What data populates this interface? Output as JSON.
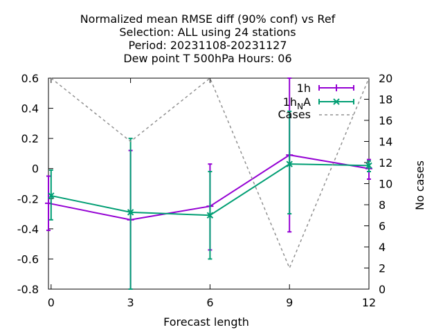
{
  "chart_data": {
    "type": "line",
    "title_lines": [
      "Normalized mean RMSE diff (90% conf) vs Ref",
      "Selection: ALL using    24 stations",
      "Period: 20231108-20231127",
      "Dew point T 500hPa   Hours:  06"
    ],
    "xlabel": "Forecast length",
    "ylabel": "",
    "y2label": "No cases",
    "xlim": [
      -0.1,
      12
    ],
    "ylim": [
      -0.8,
      0.6
    ],
    "y2lim": [
      0,
      20
    ],
    "x_ticks": [
      0,
      3,
      6,
      9,
      12
    ],
    "y_ticks": [
      -0.8,
      -0.6,
      -0.4,
      -0.2,
      0,
      0.2,
      0.4,
      0.6
    ],
    "y_tick_labels": [
      "-0.8",
      "-0.6",
      "-0.4",
      "-0.2",
      "0",
      "0.2",
      "0.4",
      "0.6"
    ],
    "y2_ticks": [
      0,
      2,
      4,
      6,
      8,
      10,
      12,
      14,
      16,
      18,
      20
    ],
    "legend_position": "top-right",
    "series": [
      {
        "name": "1h",
        "color": "#9400d3",
        "marker": "plus",
        "x": [
          -0.1,
          3,
          6,
          9,
          12
        ],
        "y": [
          -0.23,
          -0.34,
          -0.25,
          0.09,
          0.0
        ],
        "err_low": [
          -0.41,
          -0.8,
          -0.54,
          -0.42,
          -0.07
        ],
        "err_high": [
          -0.05,
          0.12,
          0.03,
          0.6,
          0.06
        ]
      },
      {
        "name_main": "1h",
        "name_sub": "N",
        "name_tail": "A",
        "color": "#009e73",
        "marker": "cross",
        "x": [
          0,
          3,
          6,
          9,
          12
        ],
        "y": [
          -0.18,
          -0.29,
          -0.31,
          0.03,
          0.02
        ],
        "err_low": [
          -0.34,
          -0.8,
          -0.6,
          -0.3,
          -0.02
        ],
        "err_high": [
          -0.01,
          0.2,
          -0.02,
          0.38,
          0.05
        ]
      },
      {
        "name": "Cases",
        "color": "#909090",
        "axis": "y2",
        "style": "dashed",
        "x": [
          0,
          3,
          6,
          9,
          12
        ],
        "y": [
          20,
          14,
          20,
          2,
          20
        ]
      }
    ]
  }
}
